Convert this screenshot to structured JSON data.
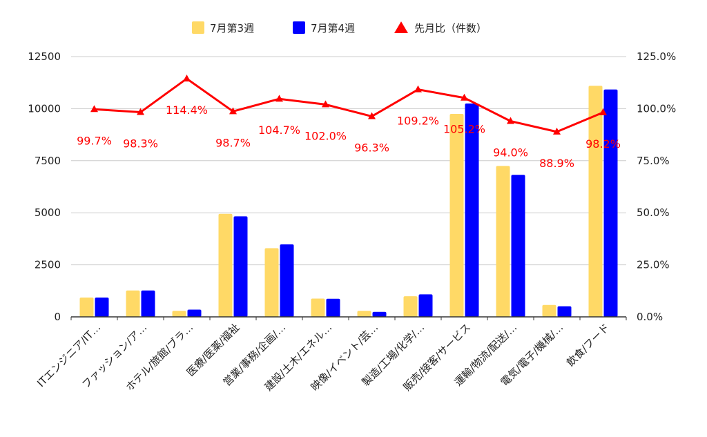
{
  "colors": {
    "week3": "#FFD966",
    "week4": "#0000FF",
    "ratio": "#FF0000",
    "grid": "#CCCCCC",
    "axis": "#333333"
  },
  "legend": {
    "week3": "7月第3週",
    "week4": "7月第4週",
    "ratio": "先月比（件数）"
  },
  "chart_data": {
    "type": "bar",
    "title": "",
    "xlabel": "",
    "ylabel": "",
    "legend_position": "top",
    "grid": true,
    "categories": [
      "ITエンジニア/IT…",
      "ファッション/ア…",
      "ホテル/旅館/ブラ…",
      "医療/医薬/福祉",
      "営業/事務/企画/…",
      "建設/土木/エネル…",
      "映像/イベント/芸…",
      "製造/工場/化学/…",
      "販売/接客/サービス",
      "運輸/物流/配送/…",
      "電気/電子/機械/…",
      "飲食/フード"
    ],
    "series": [
      {
        "name": "7月第3週",
        "type": "bar",
        "axis": "left",
        "values": [
          930,
          1270,
          290,
          4950,
          3300,
          880,
          290,
          990,
          9750,
          7250,
          570,
          11100
        ]
      },
      {
        "name": "7月第4週",
        "type": "bar",
        "axis": "left",
        "values": [
          930,
          1270,
          350,
          4830,
          3480,
          870,
          240,
          1080,
          10250,
          6820,
          510,
          10920
        ]
      },
      {
        "name": "先月比（件数）",
        "type": "line",
        "axis": "right",
        "values": [
          99.7,
          98.3,
          114.4,
          98.7,
          104.7,
          102.0,
          96.3,
          109.2,
          105.2,
          94.0,
          88.9,
          98.2
        ],
        "labels": [
          "99.7%",
          "98.3%",
          "114.4%",
          "98.7%",
          "104.7%",
          "102.0%",
          "96.3%",
          "109.2%",
          "105.2%",
          "94.0%",
          "88.9%",
          "98.2%"
        ]
      }
    ],
    "y_left": {
      "range": [
        0,
        12500
      ],
      "ticks": [
        "0",
        "2500",
        "5000",
        "7500",
        "10000",
        "12500"
      ]
    },
    "y_right": {
      "range": [
        0,
        125
      ],
      "ticks": [
        "0.0%",
        "25.0%",
        "50.0%",
        "75.0%",
        "100.0%",
        "125.0%"
      ]
    }
  }
}
